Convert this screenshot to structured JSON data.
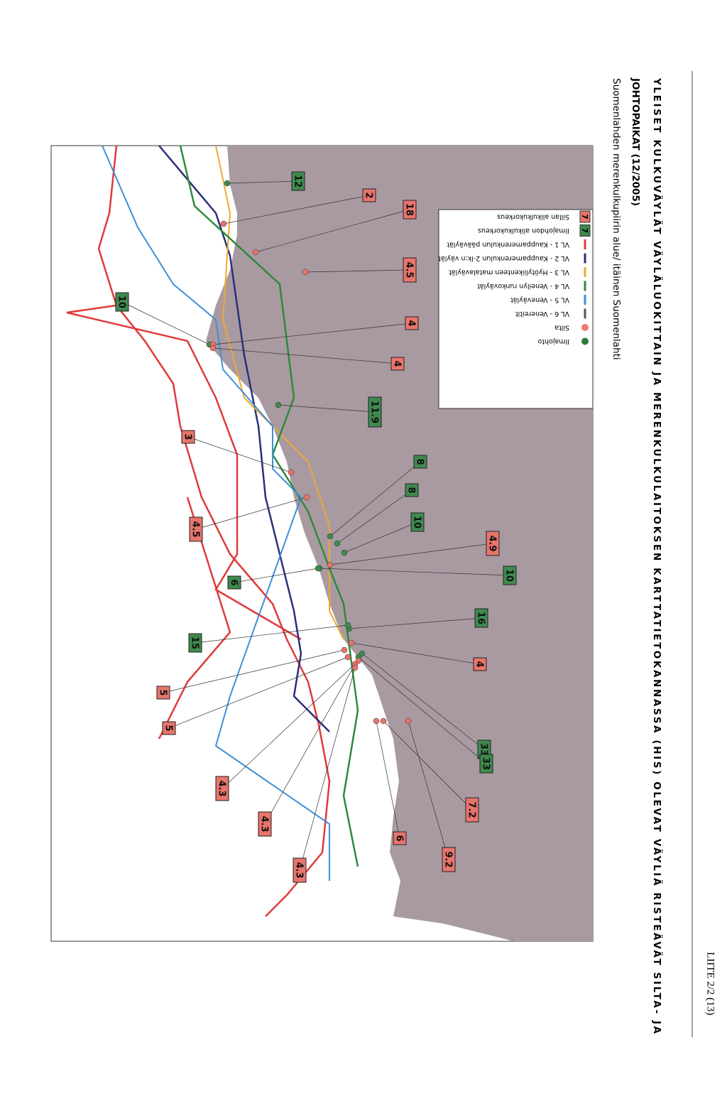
{
  "header": {
    "page": "LIITE 2/2 (13)",
    "title_lines": [
      "YLEISET KULKUVÄYLÄT VÄYLÄLUOKITTAIN JA MERENKULKULAITOKSEN KARTTATIETOKANNASSA (HIS) OLEVAT VÄYLIÄ RISTEÄVÄT SILTA- JA",
      "JOHTOPAIKAT (12/2005)"
    ],
    "subtitle": "Suomenlahden merenkulkupiirin alue/ itäinen Suomenlahti"
  },
  "legend": {
    "items": [
      {
        "sample": "7",
        "label": "Sillan alikulkukorkeus",
        "color": "#e8746c"
      },
      {
        "sample": "7",
        "label": "Ilmajohdon alikulkukorkeus",
        "color": "#3f8a4f"
      },
      {
        "label": "VL 1 - Kauppamerenkulun pääväylät",
        "color": "#e03a3a"
      },
      {
        "label": "VL 2 - Kauppamerenkulun 2-lk:n väylät",
        "color": "#2a2f7a"
      },
      {
        "label": "VL 3 - Hyötyliikenteen matalaväylät",
        "color": "#f0a830"
      },
      {
        "label": "VL 4 - Veneilyn runkoväylät",
        "color": "#2e8a3a"
      },
      {
        "label": "VL 5 - Veneväylät",
        "color": "#3f8fd8"
      },
      {
        "label": "VL 6 - Venereitit",
        "color": "#555555"
      },
      {
        "label": "Silta",
        "color": "#f07a6a"
      },
      {
        "label": "Ilmajohto",
        "color": "#2e7a3a"
      }
    ]
  },
  "labels": [
    {
      "text": "12",
      "color": "#3f8a4f"
    },
    {
      "text": "2",
      "color": "#e8746c"
    },
    {
      "text": "18",
      "color": "#e8746c"
    },
    {
      "text": "4.5",
      "color": "#e8746c"
    },
    {
      "text": "10",
      "color": "#3f8a4f"
    },
    {
      "text": "4",
      "color": "#e8746c"
    },
    {
      "text": "4",
      "color": "#e8746c"
    },
    {
      "text": "11.9",
      "color": "#3f8a4f"
    },
    {
      "text": "3",
      "color": "#e8746c"
    },
    {
      "text": "8",
      "color": "#3f8a4f"
    },
    {
      "text": "8",
      "color": "#3f8a4f"
    },
    {
      "text": "10",
      "color": "#3f8a4f"
    },
    {
      "text": "4.5",
      "color": "#e8746c"
    },
    {
      "text": "4.9",
      "color": "#e8746c"
    },
    {
      "text": "10",
      "color": "#3f8a4f"
    },
    {
      "text": "6",
      "color": "#3f8a4f"
    },
    {
      "text": "16",
      "color": "#3f8a4f"
    },
    {
      "text": "15",
      "color": "#3f8a4f"
    },
    {
      "text": "4",
      "color": "#e8746c"
    },
    {
      "text": "5",
      "color": "#e8746c"
    },
    {
      "text": "5",
      "color": "#e8746c"
    },
    {
      "text": "33",
      "color": "#3f8a4f"
    },
    {
      "text": "33",
      "color": "#3f8a4f"
    },
    {
      "text": "4.3",
      "color": "#e8746c"
    },
    {
      "text": "7.2",
      "color": "#e8746c"
    },
    {
      "text": "4.3",
      "color": "#e8746c"
    },
    {
      "text": "6",
      "color": "#e8746c"
    },
    {
      "text": "9.2",
      "color": "#e8746c"
    },
    {
      "text": "4.3",
      "color": "#e8746c"
    }
  ]
}
